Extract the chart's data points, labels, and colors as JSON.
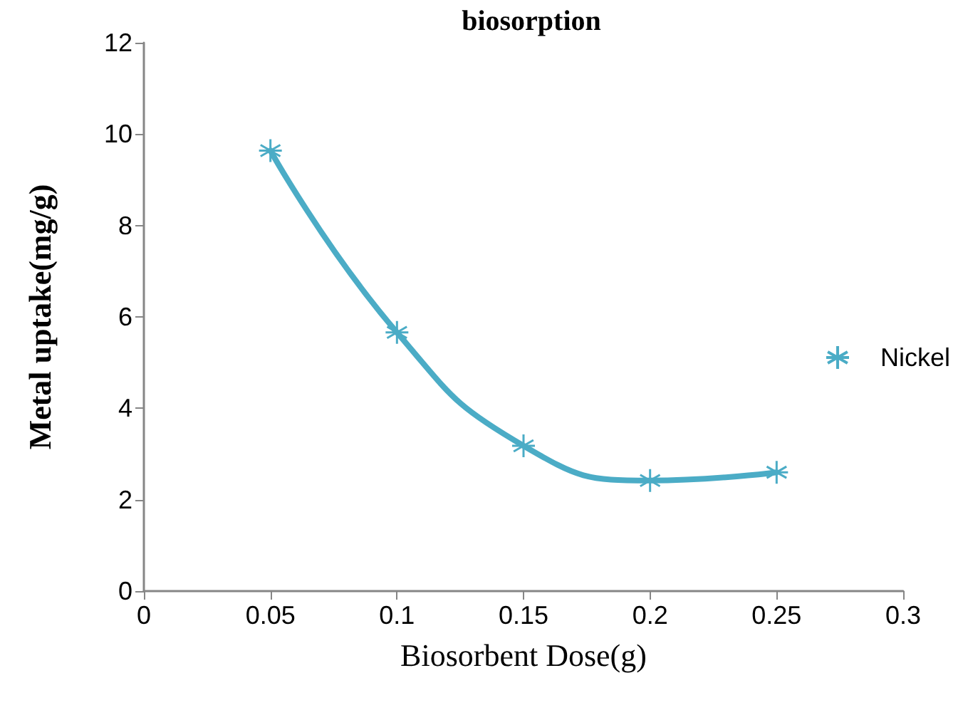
{
  "chart_data": {
    "type": "line",
    "title": "biosorption",
    "xlabel": "Biosorbent Dose(g)",
    "ylabel": "Metal uptake(mg/g)",
    "x": [
      0.05,
      0.1,
      0.15,
      0.2,
      0.25
    ],
    "series": [
      {
        "name": "Nickel",
        "color": "#4bacc6",
        "values": [
          9.64,
          5.66,
          3.18,
          2.42,
          2.6
        ]
      }
    ],
    "xlim": [
      0,
      0.3
    ],
    "xticks": [
      0,
      0.05,
      0.1,
      0.15,
      0.2,
      0.25,
      0.3
    ],
    "ylim": [
      0,
      12
    ],
    "yticks": [
      0,
      2,
      4,
      6,
      8,
      10,
      12
    ],
    "grid": false,
    "legend": "right",
    "marker": "cross",
    "line_style": "solid"
  }
}
